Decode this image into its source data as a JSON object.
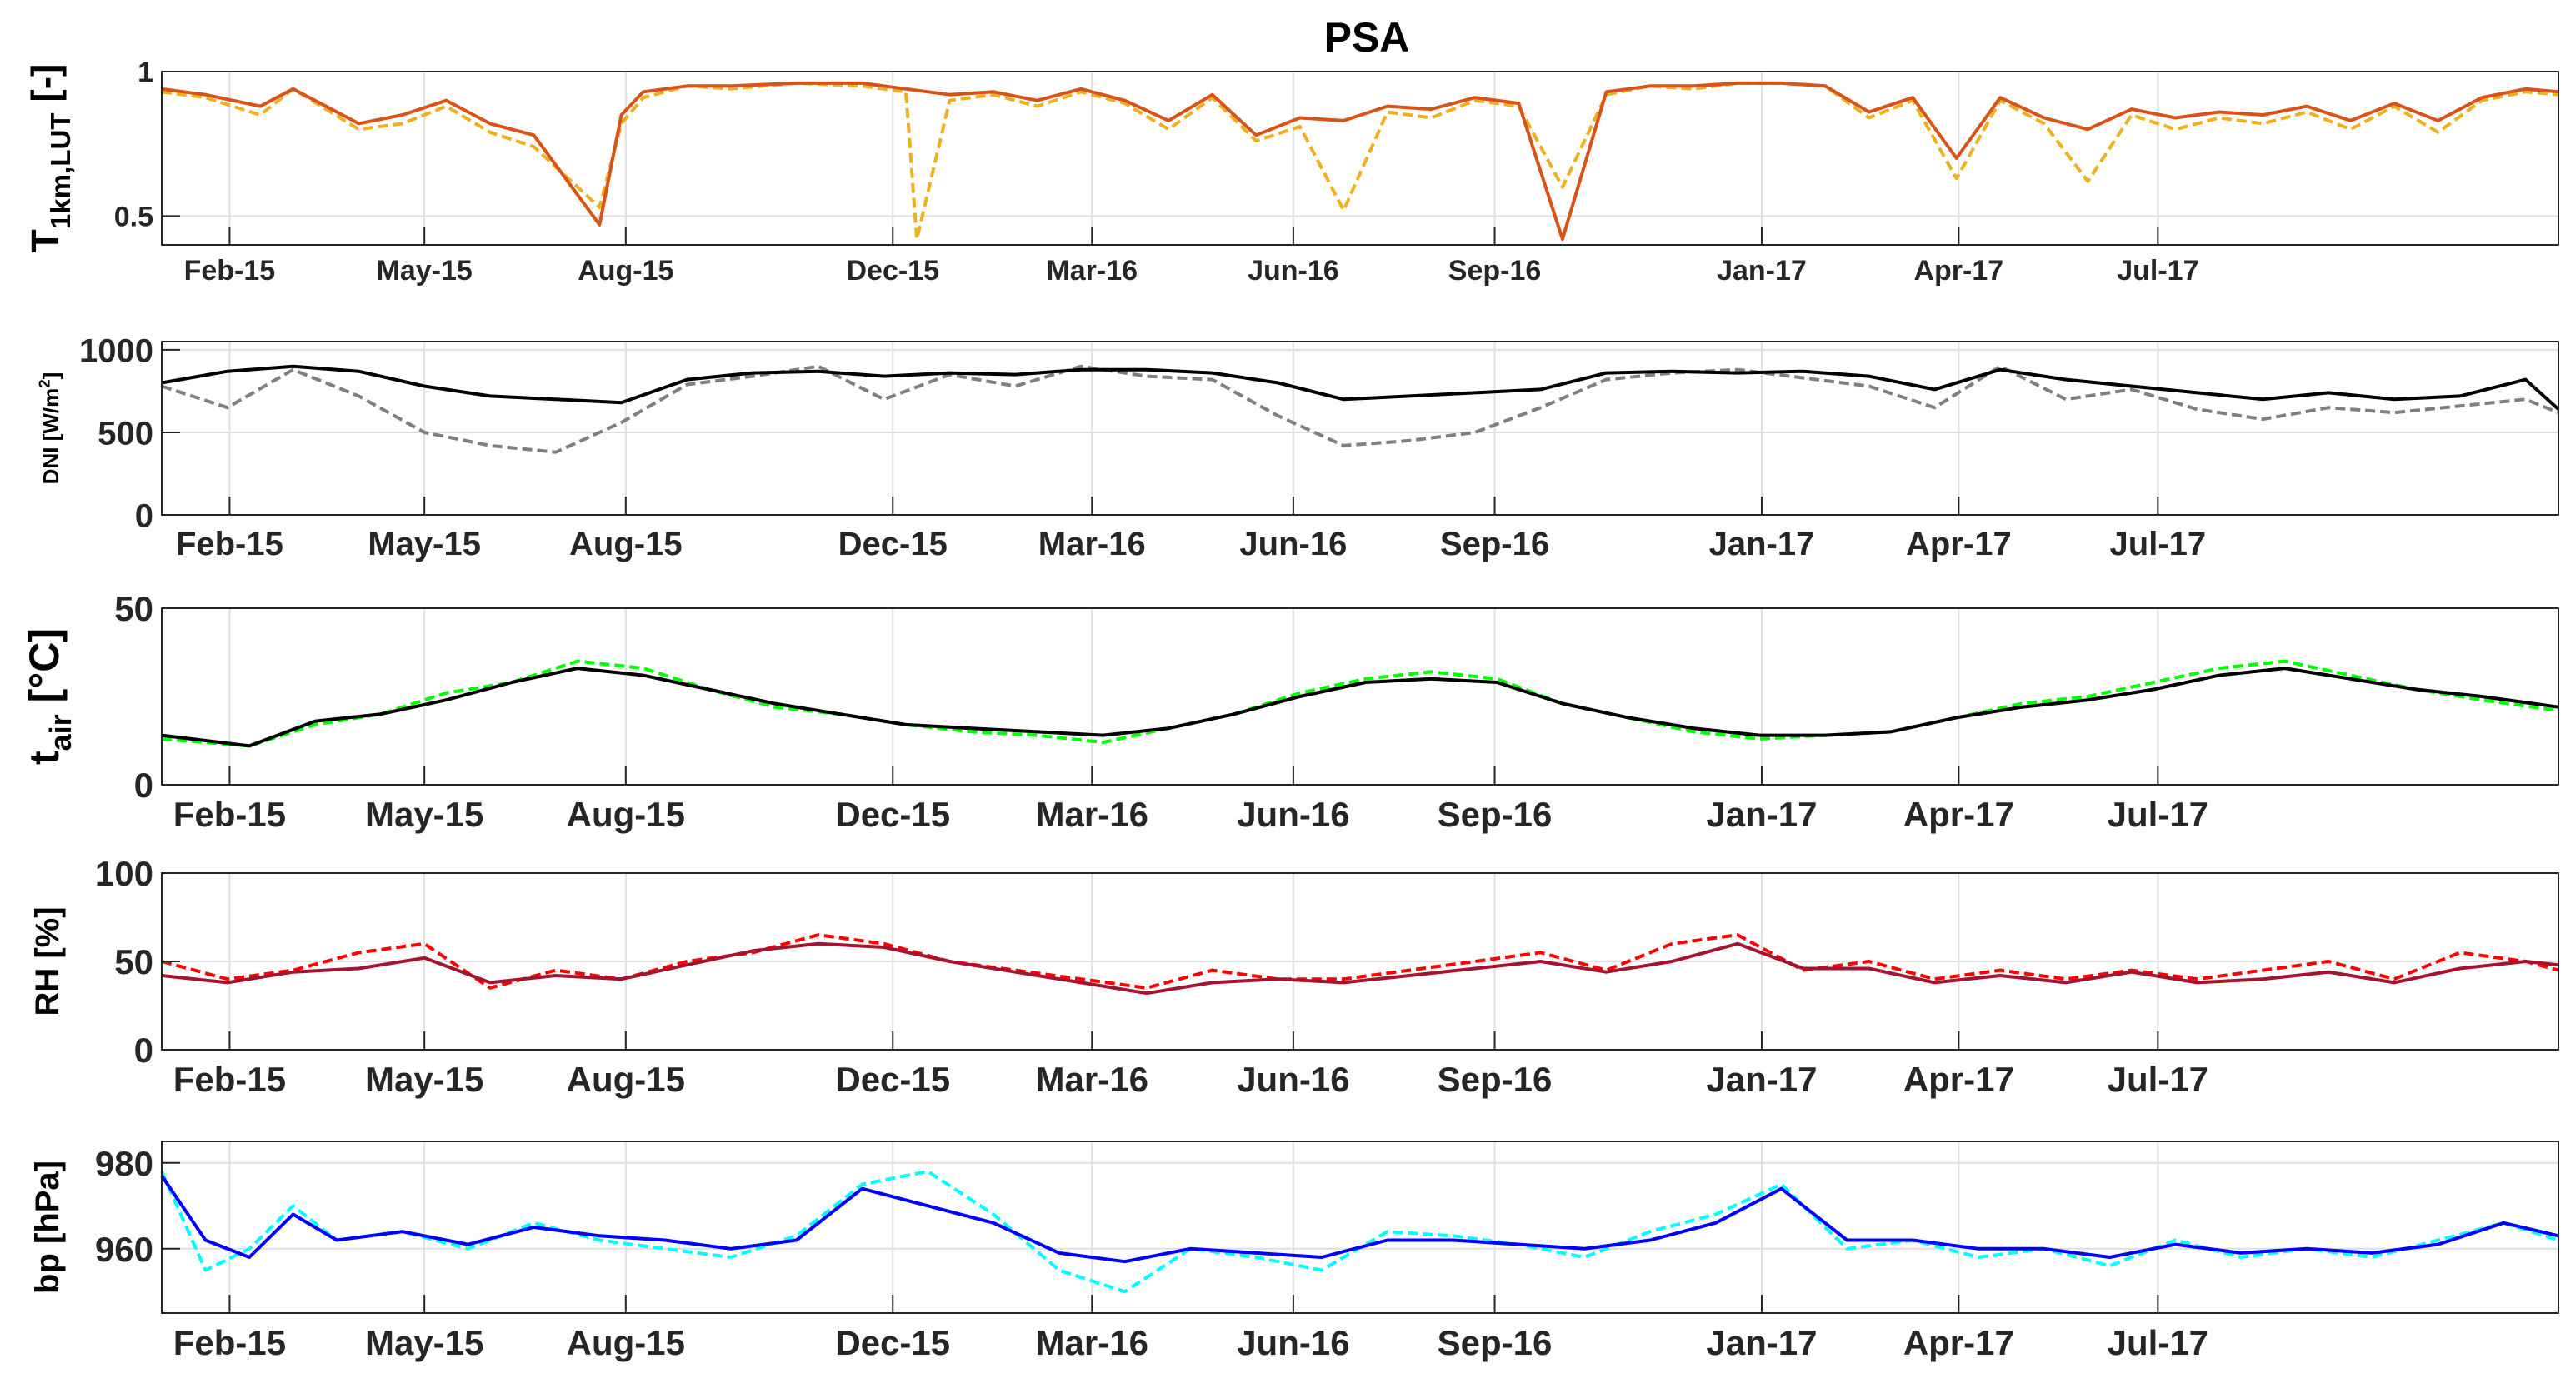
{
  "figure_title": "PSA",
  "x_tick_labels": [
    "Feb-15",
    "May-15",
    "Aug-15",
    "Dec-15",
    "Mar-16",
    "Jun-16",
    "Sep-16",
    "Jan-17",
    "Apr-17",
    "Jul-17"
  ],
  "chart_data": [
    {
      "type": "line",
      "panel": "transmittance",
      "title": "PSA",
      "ylabel": "T1km,LUT [-]",
      "ylabel_main": "T",
      "ylabel_sub": "1km,LUT",
      "ylabel_suffix": " [-]",
      "ylim": [
        0.4,
        1.0
      ],
      "yticks": [
        0.5,
        1
      ],
      "ytick_labels": [
        "0.5",
        "1"
      ],
      "x_range_days": [
        0,
        1095
      ],
      "x_tick_days": [
        31,
        120,
        212,
        334,
        425,
        517,
        609,
        731,
        821,
        912
      ],
      "grid": true,
      "series": [
        {
          "name": "daily",
          "style": "dashed",
          "color": "#EDB120",
          "x": [
            0,
            20,
            45,
            60,
            90,
            110,
            130,
            150,
            170,
            200,
            210,
            220,
            240,
            260,
            290,
            320,
            340,
            345,
            360,
            380,
            400,
            420,
            440,
            460,
            480,
            500,
            520,
            540,
            560,
            580,
            600,
            620,
            640,
            660,
            680,
            700,
            720,
            740,
            760,
            780,
            800,
            820,
            840,
            860,
            880,
            900,
            920,
            940,
            960,
            980,
            1000,
            1020,
            1040,
            1060,
            1080,
            1095
          ],
          "values": [
            0.93,
            0.91,
            0.85,
            0.94,
            0.8,
            0.82,
            0.88,
            0.79,
            0.74,
            0.53,
            0.82,
            0.91,
            0.95,
            0.94,
            0.96,
            0.95,
            0.93,
            0.42,
            0.9,
            0.92,
            0.88,
            0.93,
            0.89,
            0.8,
            0.91,
            0.76,
            0.81,
            0.52,
            0.86,
            0.84,
            0.9,
            0.88,
            0.6,
            0.92,
            0.95,
            0.94,
            0.96,
            0.96,
            0.95,
            0.84,
            0.9,
            0.63,
            0.9,
            0.82,
            0.62,
            0.85,
            0.8,
            0.84,
            0.82,
            0.86,
            0.8,
            0.88,
            0.79,
            0.9,
            0.93,
            0.92
          ]
        },
        {
          "name": "monthly",
          "style": "solid",
          "color": "#D95319",
          "x": [
            0,
            20,
            45,
            60,
            90,
            110,
            130,
            150,
            170,
            200,
            210,
            220,
            240,
            260,
            290,
            320,
            340,
            360,
            380,
            400,
            420,
            440,
            460,
            480,
            500,
            520,
            540,
            560,
            580,
            600,
            620,
            640,
            660,
            680,
            700,
            720,
            740,
            760,
            780,
            800,
            820,
            840,
            860,
            880,
            900,
            920,
            940,
            960,
            980,
            1000,
            1020,
            1040,
            1060,
            1080,
            1095
          ],
          "values": [
            0.94,
            0.92,
            0.88,
            0.94,
            0.82,
            0.85,
            0.9,
            0.82,
            0.78,
            0.47,
            0.85,
            0.93,
            0.95,
            0.95,
            0.96,
            0.96,
            0.94,
            0.92,
            0.93,
            0.9,
            0.94,
            0.9,
            0.83,
            0.92,
            0.78,
            0.84,
            0.83,
            0.88,
            0.87,
            0.91,
            0.89,
            0.42,
            0.93,
            0.95,
            0.95,
            0.96,
            0.96,
            0.95,
            0.86,
            0.91,
            0.7,
            0.91,
            0.84,
            0.8,
            0.87,
            0.84,
            0.86,
            0.85,
            0.88,
            0.83,
            0.89,
            0.83,
            0.91,
            0.94,
            0.93
          ]
        }
      ]
    },
    {
      "type": "line",
      "panel": "dni",
      "ylabel": "DNI [W/m2]",
      "ylabel_main": "DNI [W/m",
      "ylabel_sup": "2",
      "ylabel_suffix": "]",
      "ylim": [
        0,
        1050
      ],
      "yticks": [
        0,
        500,
        1000
      ],
      "ytick_labels": [
        "0",
        "500",
        "1000"
      ],
      "x_range_days": [
        0,
        1095
      ],
      "x_tick_days": [
        31,
        120,
        212,
        334,
        425,
        517,
        609,
        731,
        821,
        912
      ],
      "grid": true,
      "series": [
        {
          "name": "daily",
          "style": "dashed",
          "color": "#7F7F7F",
          "x": [
            0,
            30,
            60,
            90,
            120,
            150,
            180,
            210,
            240,
            270,
            300,
            330,
            360,
            390,
            420,
            450,
            480,
            510,
            540,
            570,
            600,
            630,
            660,
            690,
            720,
            750,
            780,
            810,
            840,
            870,
            900,
            930,
            960,
            990,
            1020,
            1050,
            1080,
            1095
          ],
          "values": [
            780,
            650,
            880,
            720,
            500,
            420,
            380,
            560,
            790,
            840,
            900,
            700,
            850,
            780,
            900,
            840,
            820,
            600,
            420,
            450,
            500,
            650,
            820,
            860,
            880,
            830,
            780,
            650,
            900,
            700,
            760,
            640,
            580,
            650,
            620,
            660,
            700,
            620
          ]
        },
        {
          "name": "smoothed",
          "style": "solid",
          "color": "#000000",
          "x": [
            0,
            30,
            60,
            90,
            120,
            150,
            180,
            210,
            240,
            270,
            300,
            330,
            360,
            390,
            420,
            450,
            480,
            510,
            540,
            570,
            600,
            630,
            660,
            690,
            720,
            750,
            780,
            810,
            840,
            870,
            900,
            930,
            960,
            990,
            1020,
            1050,
            1080,
            1095
          ],
          "values": [
            800,
            870,
            900,
            870,
            780,
            720,
            700,
            680,
            820,
            860,
            870,
            840,
            860,
            850,
            880,
            880,
            860,
            800,
            700,
            720,
            740,
            760,
            860,
            870,
            860,
            870,
            840,
            760,
            880,
            820,
            780,
            740,
            700,
            740,
            700,
            720,
            820,
            640
          ]
        }
      ]
    },
    {
      "type": "line",
      "panel": "air_temperature",
      "ylabel": "tair [°C]",
      "ylabel_main": "t",
      "ylabel_sub": "air",
      "ylabel_suffix": " [°C]",
      "ylim": [
        0,
        50
      ],
      "yticks": [
        0,
        50
      ],
      "ytick_labels": [
        "0",
        "50"
      ],
      "x_range_days": [
        0,
        1095
      ],
      "x_tick_days": [
        31,
        120,
        212,
        334,
        425,
        517,
        609,
        731,
        821,
        912
      ],
      "grid": true,
      "series": [
        {
          "name": "daily",
          "style": "dashed",
          "color": "#00FF00",
          "x": [
            0,
            40,
            70,
            100,
            130,
            160,
            190,
            220,
            250,
            280,
            310,
            340,
            370,
            400,
            430,
            460,
            490,
            520,
            550,
            580,
            610,
            640,
            670,
            700,
            730,
            760,
            790,
            820,
            850,
            880,
            910,
            940,
            970,
            1000,
            1030,
            1060,
            1095
          ],
          "values": [
            13,
            11,
            17,
            20,
            26,
            29,
            35,
            33,
            27,
            22,
            20,
            17,
            15,
            14,
            12,
            16,
            20,
            26,
            30,
            32,
            30,
            23,
            19,
            15,
            13,
            14,
            15,
            19,
            23,
            25,
            29,
            33,
            35,
            31,
            27,
            24,
            21
          ]
        },
        {
          "name": "smoothed",
          "style": "solid",
          "color": "#000000",
          "x": [
            0,
            40,
            70,
            100,
            130,
            160,
            190,
            220,
            250,
            280,
            310,
            340,
            370,
            400,
            430,
            460,
            490,
            520,
            550,
            580,
            610,
            640,
            670,
            700,
            730,
            760,
            790,
            820,
            850,
            880,
            910,
            940,
            970,
            1000,
            1030,
            1060,
            1095
          ],
          "values": [
            14,
            11,
            18,
            20,
            24,
            29,
            33,
            31,
            27,
            23,
            20,
            17,
            16,
            15,
            14,
            16,
            20,
            25,
            29,
            30,
            29,
            23,
            19,
            16,
            14,
            14,
            15,
            19,
            22,
            24,
            27,
            31,
            33,
            30,
            27,
            25,
            22
          ]
        }
      ]
    },
    {
      "type": "line",
      "panel": "relative_humidity",
      "ylabel": "RH [%]",
      "ylim": [
        0,
        100
      ],
      "yticks": [
        0,
        50,
        100
      ],
      "ytick_labels": [
        "0",
        "50",
        "100"
      ],
      "x_range_days": [
        0,
        1095
      ],
      "x_tick_days": [
        31,
        120,
        212,
        334,
        425,
        517,
        609,
        731,
        821,
        912
      ],
      "grid": true,
      "series": [
        {
          "name": "daily",
          "style": "dashed",
          "color": "#FF0000",
          "x": [
            0,
            30,
            60,
            90,
            120,
            150,
            180,
            210,
            240,
            270,
            300,
            330,
            360,
            390,
            420,
            450,
            480,
            510,
            540,
            570,
            600,
            630,
            660,
            690,
            720,
            750,
            780,
            810,
            840,
            870,
            900,
            930,
            960,
            990,
            1020,
            1050,
            1080,
            1095
          ],
          "values": [
            50,
            40,
            45,
            55,
            60,
            35,
            45,
            40,
            50,
            55,
            65,
            60,
            50,
            45,
            40,
            35,
            45,
            40,
            40,
            45,
            50,
            55,
            45,
            60,
            65,
            45,
            50,
            40,
            45,
            40,
            45,
            40,
            45,
            50,
            40,
            55,
            50,
            45
          ]
        },
        {
          "name": "smoothed",
          "style": "solid",
          "color": "#A2142F",
          "x": [
            0,
            30,
            60,
            90,
            120,
            150,
            180,
            210,
            240,
            270,
            300,
            330,
            360,
            390,
            420,
            450,
            480,
            510,
            540,
            570,
            600,
            630,
            660,
            690,
            720,
            750,
            780,
            810,
            840,
            870,
            900,
            930,
            960,
            990,
            1020,
            1050,
            1080,
            1095
          ],
          "values": [
            42,
            38,
            44,
            46,
            52,
            38,
            42,
            40,
            48,
            56,
            60,
            58,
            50,
            44,
            38,
            32,
            38,
            40,
            38,
            42,
            46,
            50,
            44,
            50,
            60,
            46,
            46,
            38,
            42,
            38,
            44,
            38,
            40,
            44,
            38,
            46,
            50,
            48
          ]
        }
      ]
    },
    {
      "type": "line",
      "panel": "barometric_pressure",
      "ylabel": "bp [hPa]",
      "ylim": [
        945,
        985
      ],
      "yticks": [
        960,
        980
      ],
      "ytick_labels": [
        "960",
        "980"
      ],
      "x_range_days": [
        0,
        1095
      ],
      "x_tick_days": [
        31,
        120,
        212,
        334,
        425,
        517,
        609,
        731,
        821,
        912
      ],
      "grid": true,
      "series": [
        {
          "name": "daily",
          "style": "dashed",
          "color": "#00FFFF",
          "x": [
            0,
            20,
            40,
            60,
            80,
            110,
            140,
            170,
            200,
            230,
            260,
            290,
            320,
            350,
            380,
            410,
            440,
            470,
            500,
            530,
            560,
            590,
            620,
            650,
            680,
            710,
            740,
            770,
            800,
            830,
            860,
            890,
            920,
            950,
            980,
            1010,
            1040,
            1070,
            1095
          ],
          "values": [
            978,
            955,
            960,
            970,
            962,
            964,
            960,
            966,
            962,
            960,
            958,
            963,
            975,
            978,
            968,
            955,
            950,
            960,
            958,
            955,
            964,
            963,
            961,
            958,
            964,
            968,
            975,
            960,
            962,
            958,
            960,
            956,
            962,
            958,
            960,
            958,
            962,
            966,
            962
          ]
        },
        {
          "name": "smoothed",
          "style": "solid",
          "color": "#0000FF",
          "x": [
            0,
            20,
            40,
            60,
            80,
            110,
            140,
            170,
            200,
            230,
            260,
            290,
            320,
            350,
            380,
            410,
            440,
            470,
            500,
            530,
            560,
            590,
            620,
            650,
            680,
            710,
            740,
            770,
            800,
            830,
            860,
            890,
            920,
            950,
            980,
            1010,
            1040,
            1070,
            1095
          ],
          "values": [
            977,
            962,
            958,
            968,
            962,
            964,
            961,
            965,
            963,
            962,
            960,
            962,
            974,
            970,
            966,
            959,
            957,
            960,
            959,
            958,
            962,
            962,
            961,
            960,
            962,
            966,
            974,
            962,
            962,
            960,
            960,
            958,
            961,
            959,
            960,
            959,
            961,
            966,
            963
          ]
        }
      ]
    }
  ]
}
